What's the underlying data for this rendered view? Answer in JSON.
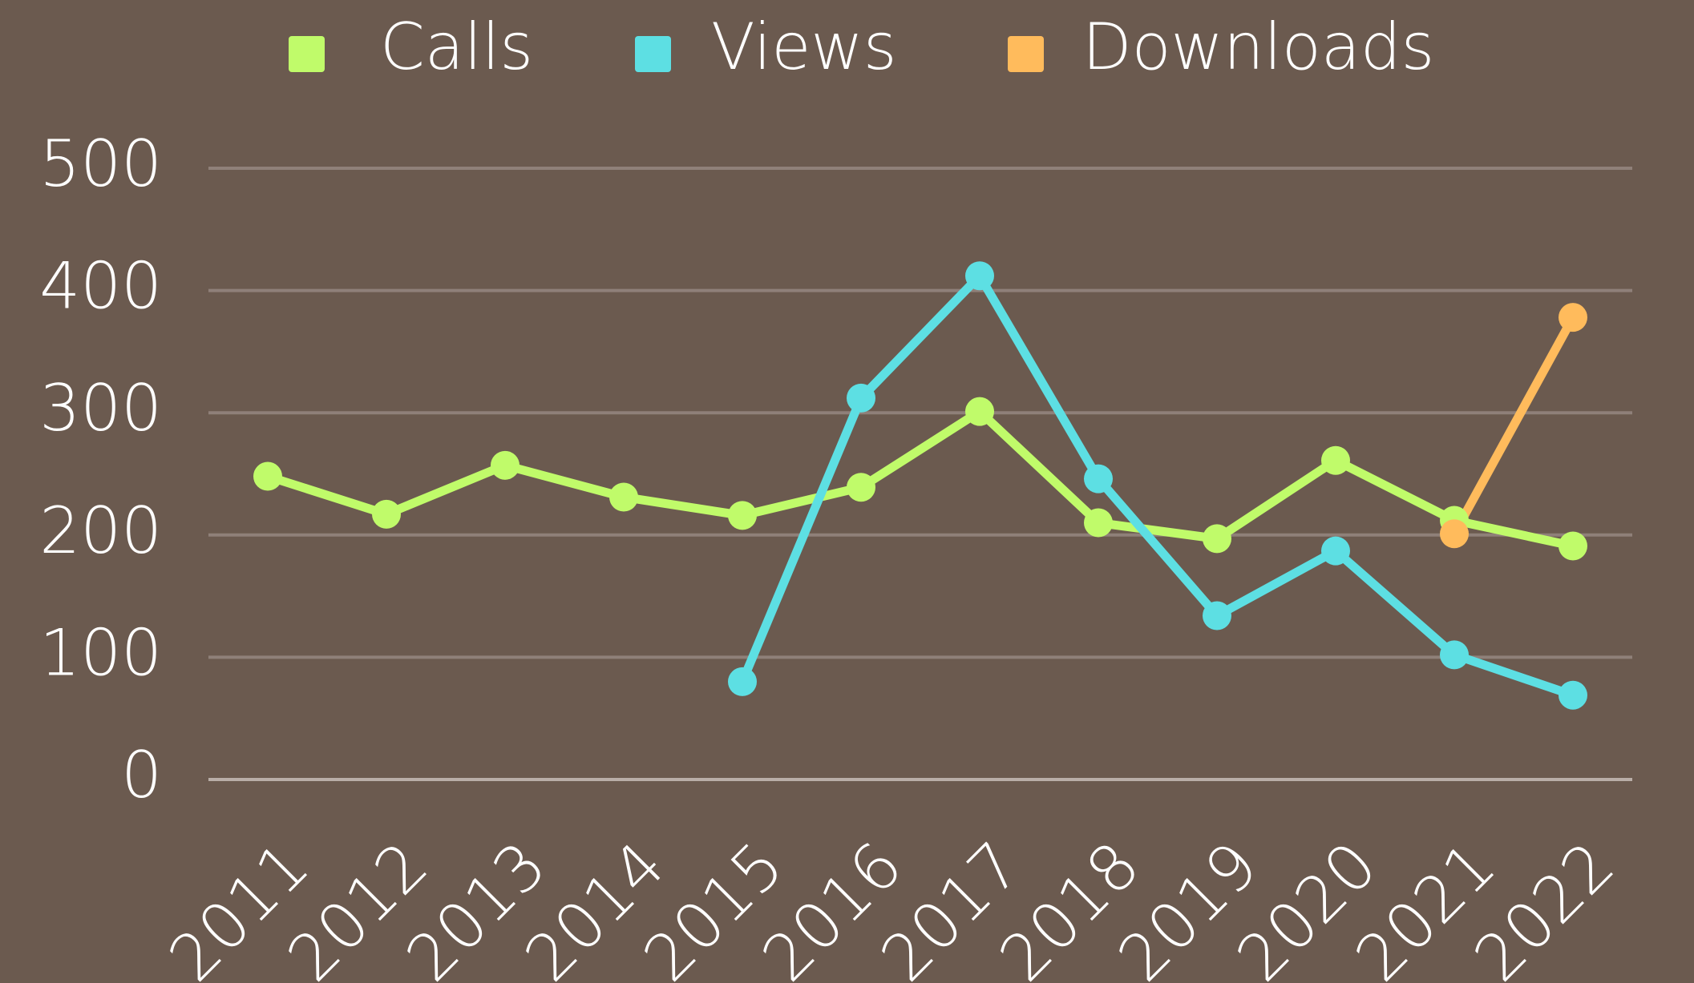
{
  "chart_data": {
    "type": "line",
    "categories": [
      "2011",
      "2012",
      "2013",
      "2014",
      "2015",
      "2016",
      "2017",
      "2018",
      "2019",
      "2020",
      "2021",
      "2022"
    ],
    "series": [
      {
        "name": "Calls",
        "color": "#c0fb6a",
        "values": [
          248,
          217,
          257,
          231,
          216,
          239,
          301,
          210,
          197,
          261,
          212,
          191
        ]
      },
      {
        "name": "Views",
        "color": "#5ddfe3",
        "values": [
          null,
          null,
          null,
          null,
          80,
          312,
          412,
          246,
          134,
          187,
          102,
          69
        ]
      },
      {
        "name": "Downloads",
        "color": "#ffbb5c",
        "values": [
          null,
          null,
          null,
          null,
          null,
          null,
          null,
          null,
          null,
          null,
          201,
          378
        ]
      }
    ],
    "ylim": [
      0,
      500
    ],
    "yticks": [
      0,
      100,
      200,
      300,
      400,
      500
    ],
    "grid": true
  }
}
